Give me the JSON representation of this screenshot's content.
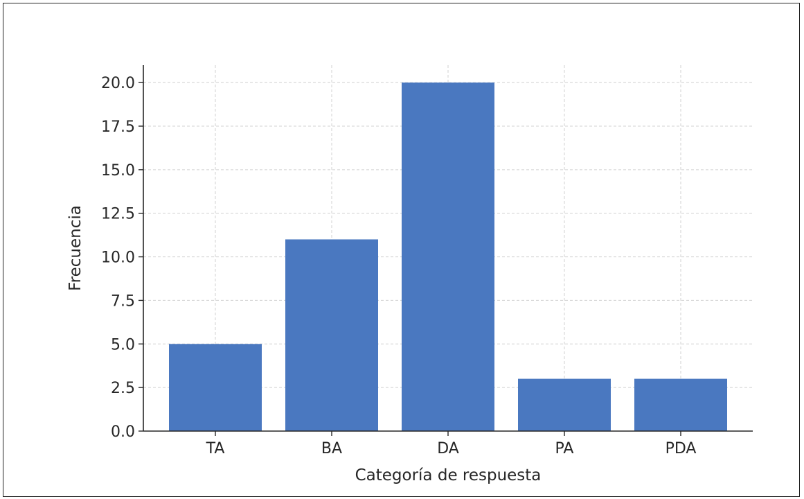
{
  "chart_data": {
    "type": "bar",
    "title": "",
    "xlabel": "Categoría de respuesta",
    "ylabel": "Frecuencia",
    "categories": [
      "TA",
      "BA",
      "DA",
      "PA",
      "PDA"
    ],
    "values": [
      5,
      11,
      20,
      3,
      3
    ],
    "ylim": [
      0,
      21
    ],
    "yticks": [
      "0.0",
      "2.5",
      "5.0",
      "7.5",
      "10.0",
      "12.5",
      "15.0",
      "17.5",
      "20.0"
    ],
    "grid": true,
    "bar_color": "#4a78c0",
    "grid_color": "#d0d0d0"
  }
}
